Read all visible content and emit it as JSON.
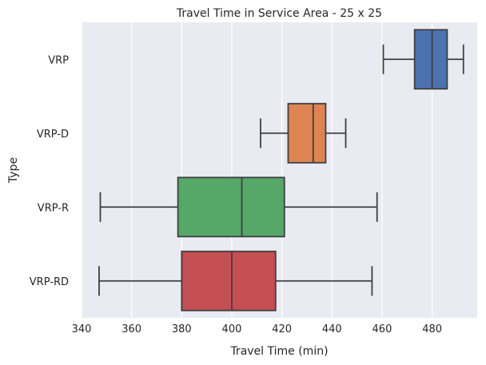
{
  "chart_data": {
    "type": "box",
    "orientation": "horizontal",
    "title": "Travel Time in Service Area - 25 x 25",
    "xlabel": "Travel Time (min)",
    "ylabel": "Type",
    "xlim": [
      340,
      498
    ],
    "xticks": [
      340,
      360,
      380,
      400,
      420,
      440,
      460,
      480
    ],
    "grid": true,
    "categories": [
      "VRP",
      "VRP-D",
      "VRP-R",
      "VRP-RD"
    ],
    "boxes": [
      {
        "category": "VRP",
        "whisker_low": 460.5,
        "q1": 473,
        "median": 480,
        "q3": 486,
        "whisker_high": 492.5,
        "color": "#4C72B0"
      },
      {
        "category": "VRP-D",
        "whisker_low": 411.5,
        "q1": 422.5,
        "median": 432.5,
        "q3": 437.5,
        "whisker_high": 445.5,
        "color": "#DD8452"
      },
      {
        "category": "VRP-R",
        "whisker_low": 347.5,
        "q1": 378.5,
        "median": 404,
        "q3": 421,
        "whisker_high": 458,
        "color": "#55A868"
      },
      {
        "category": "VRP-RD",
        "whisker_low": 347,
        "q1": 380,
        "median": 400,
        "q3": 417.5,
        "whisker_high": 456,
        "color": "#C44E52"
      }
    ]
  },
  "colors": {
    "plot_background": "#EAEAF2",
    "grid": "#FFFFFF",
    "line": "#3F3F3F"
  }
}
